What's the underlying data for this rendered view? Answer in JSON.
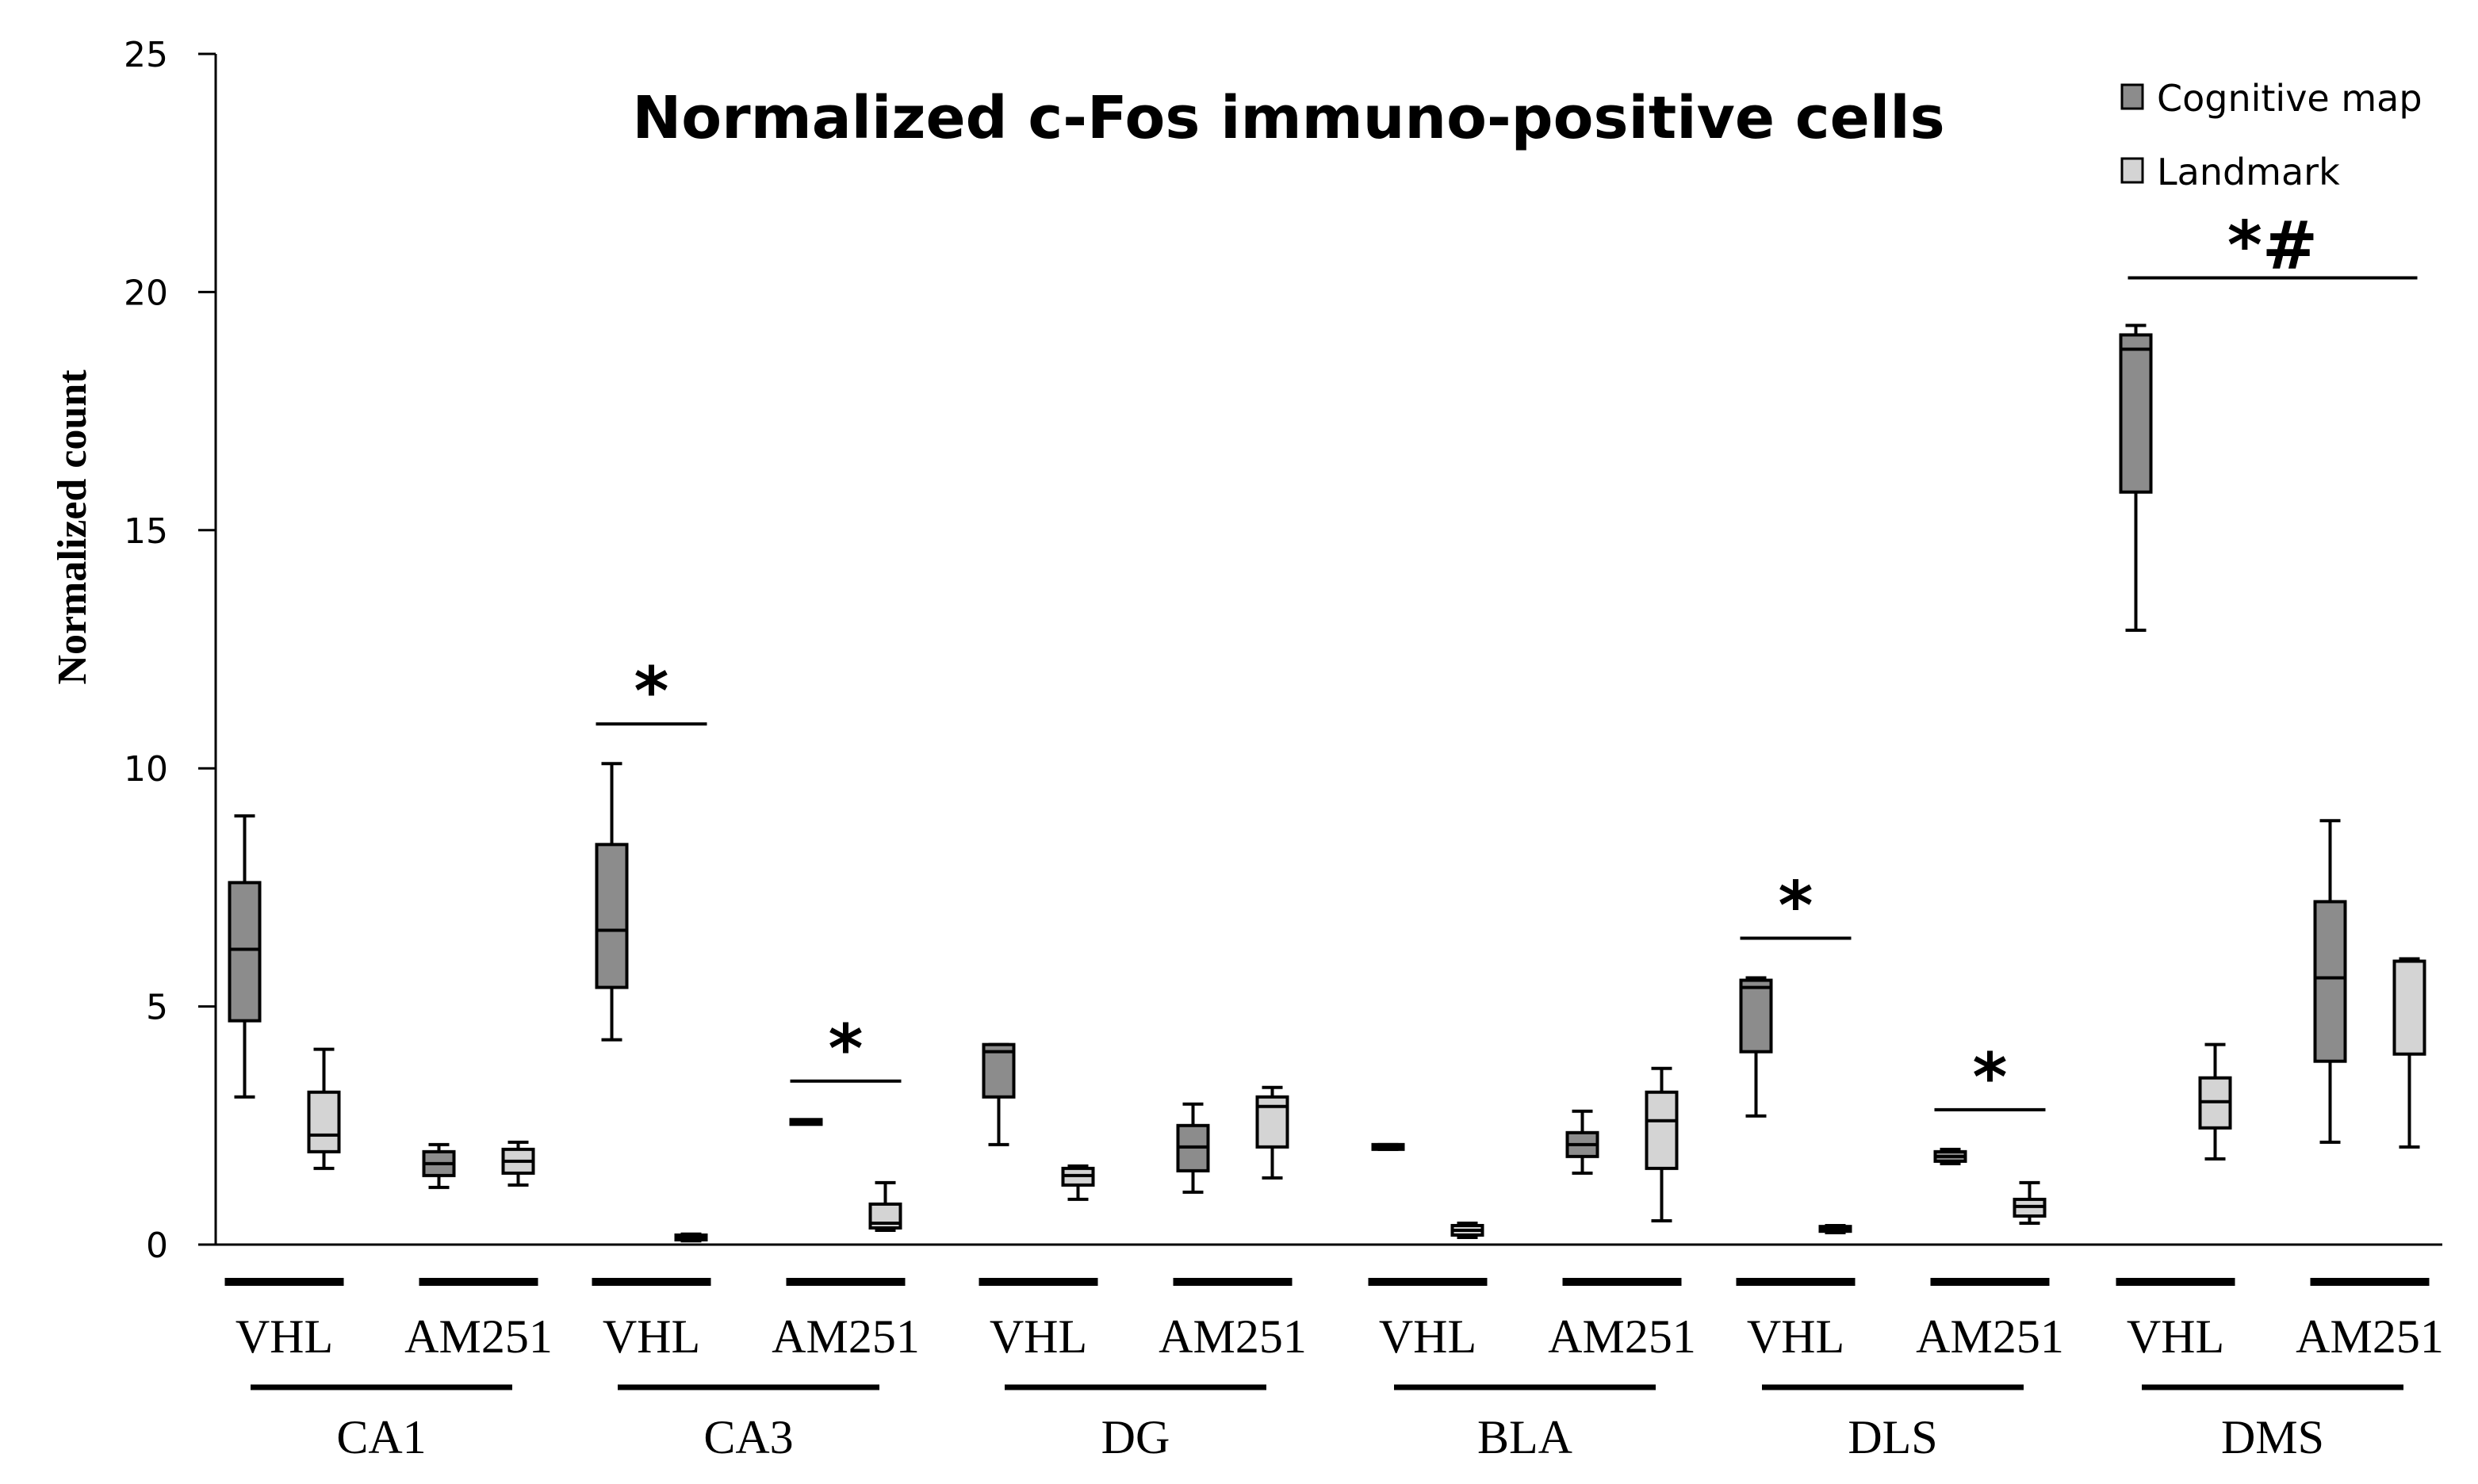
{
  "chart_data": {
    "type": "boxplot",
    "title": "Normalized c-Fos immuno-positive  cells",
    "ylabel": "Normalized count",
    "xlabel": "",
    "ylim": [
      0,
      25
    ],
    "yticks": [
      0,
      5,
      10,
      15,
      20,
      25
    ],
    "grid": false,
    "legend_position": "top-right",
    "series": [
      {
        "name": "Cognitive map",
        "color": "#8c8c8c"
      },
      {
        "name": "Landmark",
        "color": "#d4d4d4"
      }
    ],
    "regions": [
      {
        "name": "CA1",
        "conditions": [
          {
            "label": "VHL",
            "boxes": [
              {
                "series": "Cognitive map",
                "min": 3.1,
                "q1": 4.7,
                "median": 6.2,
                "q3": 7.6,
                "max": 9.0
              },
              {
                "series": "Landmark",
                "min": 1.6,
                "q1": 1.95,
                "median": 2.3,
                "q3": 3.2,
                "max": 4.1
              }
            ]
          },
          {
            "label": "AM251",
            "boxes": [
              {
                "series": "Cognitive map",
                "min": 1.2,
                "q1": 1.45,
                "median": 1.7,
                "q3": 1.95,
                "max": 2.1
              },
              {
                "series": "Landmark",
                "min": 1.25,
                "q1": 1.5,
                "median": 1.75,
                "q3": 2.0,
                "max": 2.15
              }
            ]
          }
        ]
      },
      {
        "name": "CA3",
        "annotations": [
          {
            "text": "*",
            "span": "VHL"
          },
          {
            "text": "*",
            "span": "AM251"
          }
        ],
        "conditions": [
          {
            "label": "VHL",
            "boxes": [
              {
                "series": "Cognitive map",
                "min": 4.3,
                "q1": 5.4,
                "median": 6.6,
                "q3": 8.4,
                "max": 10.1
              },
              {
                "series": "Landmark",
                "min": 0.08,
                "q1": 0.1,
                "median": 0.15,
                "q3": 0.2,
                "max": 0.22
              }
            ]
          },
          {
            "label": "AM251",
            "boxes": [
              {
                "series": "Cognitive map",
                "min": 2.55,
                "q1": 2.55,
                "median": 2.58,
                "q3": 2.6,
                "max": 2.6
              },
              {
                "series": "Landmark",
                "min": 0.3,
                "q1": 0.35,
                "median": 0.45,
                "q3": 0.85,
                "max": 1.3
              }
            ]
          }
        ]
      },
      {
        "name": "DG",
        "conditions": [
          {
            "label": "VHL",
            "boxes": [
              {
                "series": "Cognitive map",
                "min": 2.1,
                "q1": 3.1,
                "median": 4.05,
                "q3": 4.2,
                "max": 4.2
              },
              {
                "series": "Landmark",
                "min": 0.95,
                "q1": 1.25,
                "median": 1.45,
                "q3": 1.6,
                "max": 1.65
              }
            ]
          },
          {
            "label": "AM251",
            "boxes": [
              {
                "series": "Cognitive map",
                "min": 1.1,
                "q1": 1.55,
                "median": 2.05,
                "q3": 2.5,
                "max": 2.95
              },
              {
                "series": "Landmark",
                "min": 1.4,
                "q1": 2.05,
                "median": 2.9,
                "q3": 3.1,
                "max": 3.3
              }
            ]
          }
        ]
      },
      {
        "name": "BLA",
        "conditions": [
          {
            "label": "VHL",
            "boxes": [
              {
                "series": "Cognitive map",
                "min": 2.0,
                "q1": 2.02,
                "median": 2.05,
                "q3": 2.08,
                "max": 2.1
              },
              {
                "series": "Landmark",
                "min": 0.15,
                "q1": 0.2,
                "median": 0.3,
                "q3": 0.4,
                "max": 0.45
              }
            ]
          },
          {
            "label": "AM251",
            "boxes": [
              {
                "series": "Cognitive map",
                "min": 1.5,
                "q1": 1.85,
                "median": 2.1,
                "q3": 2.35,
                "max": 2.8
              },
              {
                "series": "Landmark",
                "min": 0.5,
                "q1": 1.6,
                "median": 2.6,
                "q3": 3.2,
                "max": 3.7
              }
            ]
          }
        ]
      },
      {
        "name": "DLS",
        "annotations": [
          {
            "text": "*",
            "span": "VHL"
          },
          {
            "text": "*",
            "span": "AM251"
          }
        ],
        "conditions": [
          {
            "label": "VHL",
            "boxes": [
              {
                "series": "Cognitive map",
                "min": 2.7,
                "q1": 4.05,
                "median": 5.4,
                "q3": 5.55,
                "max": 5.6
              },
              {
                "series": "Landmark",
                "min": 0.25,
                "q1": 0.28,
                "median": 0.32,
                "q3": 0.38,
                "max": 0.4
              }
            ]
          },
          {
            "label": "AM251",
            "boxes": [
              {
                "series": "Cognitive map",
                "min": 1.7,
                "q1": 1.75,
                "median": 1.85,
                "q3": 1.95,
                "max": 2.0
              },
              {
                "series": "Landmark",
                "min": 0.45,
                "q1": 0.6,
                "median": 0.8,
                "q3": 0.95,
                "max": 1.3
              }
            ]
          }
        ]
      },
      {
        "name": "DMS",
        "annotations": [
          {
            "text": "*#",
            "span": "all"
          }
        ],
        "conditions": [
          {
            "label": "VHL",
            "boxes": [
              {
                "series": "Cognitive map",
                "min": 12.9,
                "q1": 15.8,
                "median": 18.8,
                "q3": 19.1,
                "max": 19.3
              },
              {
                "series": "Landmark",
                "min": 1.8,
                "q1": 2.45,
                "median": 3.0,
                "q3": 3.5,
                "max": 4.2
              }
            ]
          },
          {
            "label": "AM251",
            "boxes": [
              {
                "series": "Cognitive map",
                "min": 2.15,
                "q1": 3.85,
                "median": 5.6,
                "q3": 7.2,
                "max": 8.9
              },
              {
                "series": "Landmark",
                "min": 2.05,
                "q1": 4.0,
                "median": 5.95,
                "q3": 5.95,
                "max": 6.0
              }
            ]
          }
        ]
      }
    ]
  }
}
